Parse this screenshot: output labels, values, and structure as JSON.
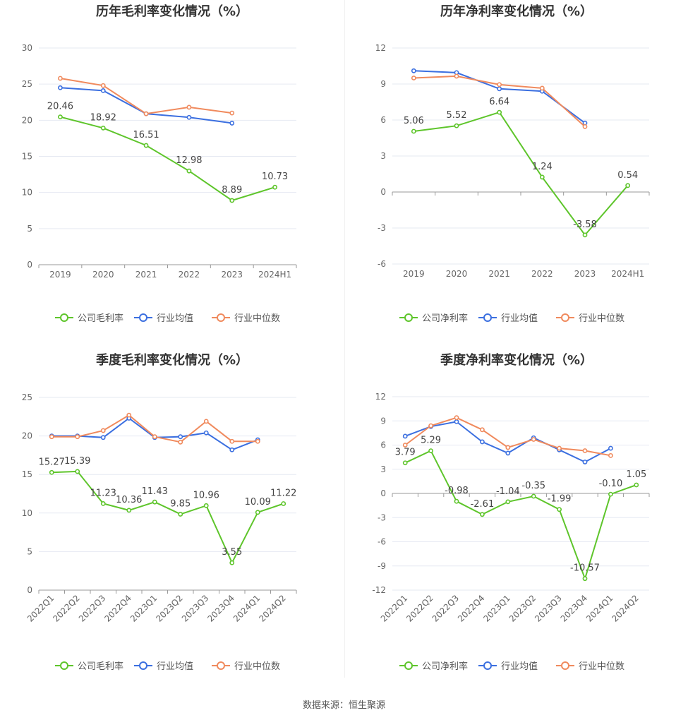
{
  "colors": {
    "company": "#5ec52b",
    "industry_avg": "#3b6fe0",
    "industry_median": "#f08a5d",
    "grid": "#e6e9f2",
    "axis": "#999999",
    "text": "#666666",
    "title": "#333333"
  },
  "source_text": "数据来源：恒生聚源",
  "chart_data": [
    {
      "type": "line",
      "title": "历年毛利率变化情况（%）",
      "categories": [
        "2019",
        "2020",
        "2021",
        "2022",
        "2023",
        "2024H1"
      ],
      "ylim": [
        0,
        30
      ],
      "yticks": [
        0,
        5,
        10,
        15,
        20,
        25,
        30
      ],
      "grid": true,
      "legend_position": "bottom",
      "tick_rotate": false,
      "series": [
        {
          "name": "公司毛利率",
          "key": "company",
          "values": [
            20.46,
            18.92,
            16.51,
            12.98,
            8.89,
            10.73
          ],
          "labels": [
            "20.46",
            "18.92",
            "16.51",
            "12.98",
            "8.89",
            "10.73"
          ]
        },
        {
          "name": "行业均值",
          "key": "industry_avg",
          "values": [
            24.5,
            24.1,
            20.9,
            20.4,
            19.6,
            null
          ]
        },
        {
          "name": "行业中位数",
          "key": "industry_median",
          "values": [
            25.8,
            24.8,
            20.9,
            21.8,
            21.0,
            null
          ]
        }
      ]
    },
    {
      "type": "line",
      "title": "历年净利率变化情况（%）",
      "categories": [
        "2019",
        "2020",
        "2021",
        "2022",
        "2023",
        "2024H1"
      ],
      "ylim": [
        -6,
        12
      ],
      "yticks": [
        -6,
        -3,
        0,
        3,
        6,
        9,
        12
      ],
      "grid": true,
      "legend_position": "bottom",
      "tick_rotate": false,
      "series": [
        {
          "name": "公司净利率",
          "key": "company",
          "values": [
            5.06,
            5.52,
            6.64,
            1.24,
            -3.58,
            0.54
          ],
          "labels": [
            "5.06",
            "5.52",
            "6.64",
            "1.24",
            "-3.58",
            "0.54"
          ]
        },
        {
          "name": "行业均值",
          "key": "industry_avg",
          "values": [
            10.1,
            9.95,
            8.6,
            8.4,
            5.75,
            null
          ]
        },
        {
          "name": "行业中位数",
          "key": "industry_median",
          "values": [
            9.5,
            9.65,
            8.95,
            8.65,
            5.45,
            null
          ]
        }
      ]
    },
    {
      "type": "line",
      "title": "季度毛利率变化情况（%）",
      "categories": [
        "2022Q1",
        "2022Q2",
        "2022Q3",
        "2022Q4",
        "2023Q1",
        "2023Q2",
        "2023Q3",
        "2023Q4",
        "2024Q1",
        "2024Q2"
      ],
      "ylim": [
        0,
        25
      ],
      "yticks": [
        0,
        5,
        10,
        15,
        20,
        25
      ],
      "grid": true,
      "legend_position": "bottom",
      "tick_rotate": true,
      "series": [
        {
          "name": "公司毛利率",
          "key": "company",
          "values": [
            15.27,
            15.39,
            11.23,
            10.36,
            11.43,
            9.85,
            10.96,
            3.55,
            10.09,
            11.22
          ],
          "labels": [
            "15.27",
            "15.39",
            "11.23",
            "10.36",
            "11.43",
            "9.85",
            "10.96",
            "3.55",
            "10.09",
            "11.22"
          ]
        },
        {
          "name": "行业均值",
          "key": "industry_avg",
          "values": [
            20.0,
            20.0,
            19.8,
            22.3,
            19.8,
            19.9,
            20.4,
            18.2,
            19.5,
            null
          ]
        },
        {
          "name": "行业中位数",
          "key": "industry_median",
          "values": [
            19.9,
            19.9,
            20.7,
            22.7,
            19.9,
            19.2,
            21.9,
            19.3,
            19.3,
            null
          ]
        }
      ]
    },
    {
      "type": "line",
      "title": "季度净利率变化情况（%）",
      "categories": [
        "2022Q1",
        "2022Q2",
        "2022Q3",
        "2022Q4",
        "2023Q1",
        "2023Q2",
        "2023Q3",
        "2023Q4",
        "2024Q1",
        "2024Q2"
      ],
      "ylim": [
        -12,
        12
      ],
      "yticks": [
        -12,
        -9,
        -6,
        -3,
        0,
        3,
        6,
        9,
        12
      ],
      "grid": true,
      "legend_position": "bottom",
      "tick_rotate": true,
      "series": [
        {
          "name": "公司净利率",
          "key": "company",
          "values": [
            3.79,
            5.29,
            -0.98,
            -2.61,
            -1.04,
            -0.35,
            -1.99,
            -10.57,
            -0.1,
            1.05
          ],
          "labels": [
            "3.79",
            "5.29",
            "-0.98",
            "-2.61",
            "-1.04",
            "-0.35",
            "-1.99",
            "-10.57",
            "-0.10",
            "1.05"
          ]
        },
        {
          "name": "行业均值",
          "key": "industry_avg",
          "values": [
            7.1,
            8.3,
            8.9,
            6.4,
            5.0,
            6.9,
            5.4,
            3.9,
            5.6,
            null
          ]
        },
        {
          "name": "行业中位数",
          "key": "industry_median",
          "values": [
            6.0,
            8.4,
            9.4,
            7.9,
            5.7,
            6.7,
            5.6,
            5.3,
            4.7,
            null
          ]
        }
      ]
    }
  ]
}
